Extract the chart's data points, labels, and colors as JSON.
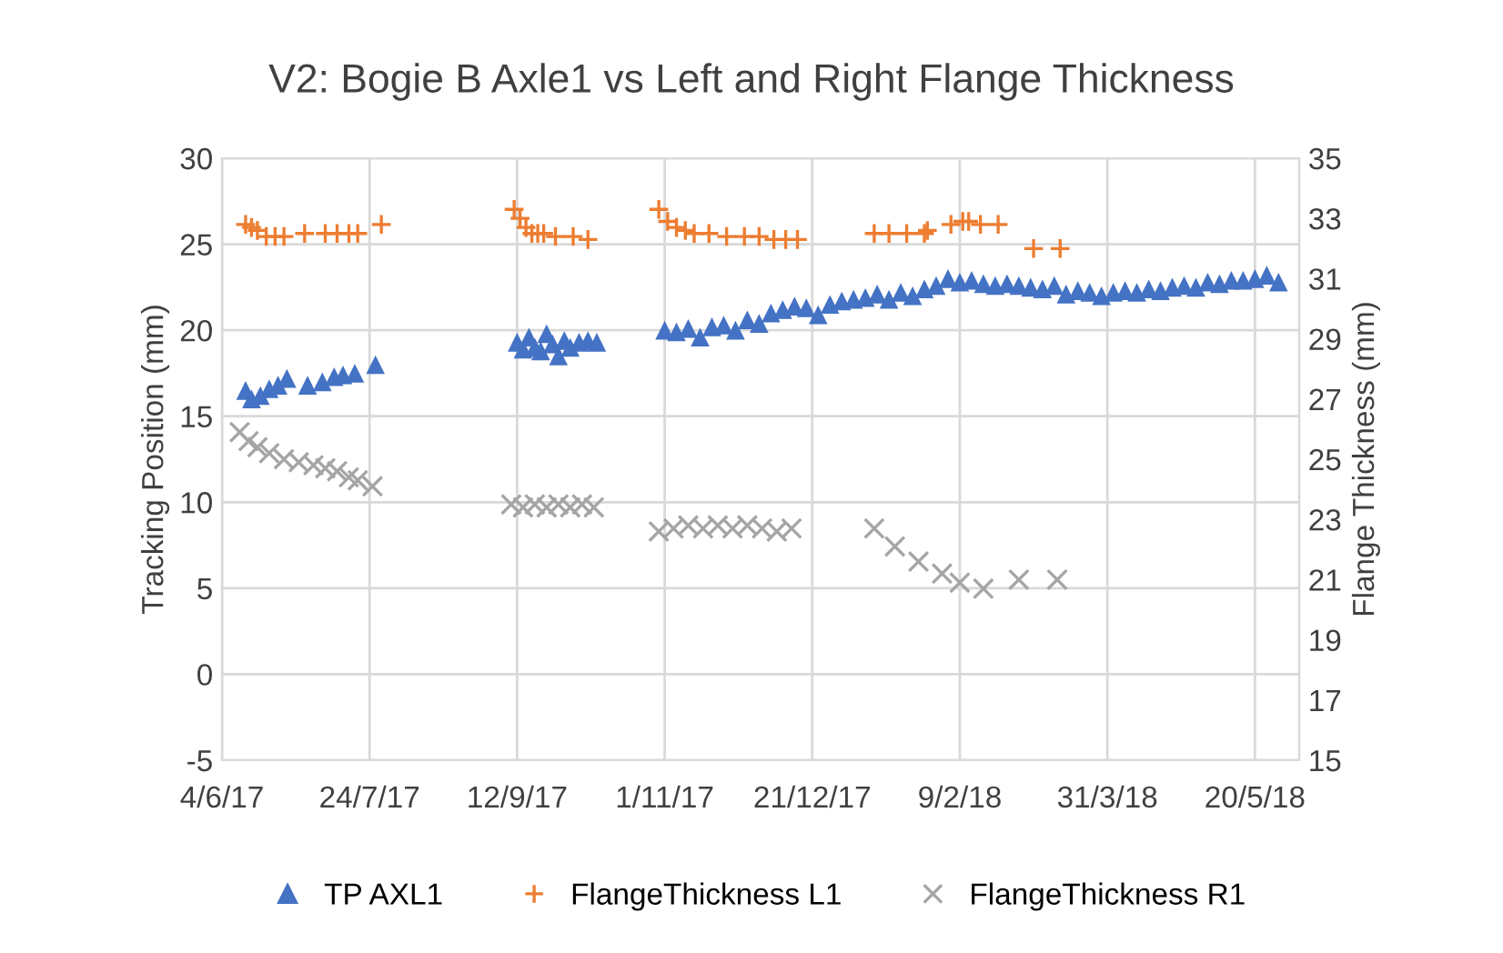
{
  "chart_data": {
    "type": "scatter",
    "title": "V2: Bogie B Axle1 vs Left and Right Flange Thickness",
    "ylabel": "Tracking Position (mm)",
    "y2label": "Flange Thickness (mm)",
    "xlim": [
      "2017-06-04",
      "2018-06-04"
    ],
    "xticks": [
      {
        "value": "2017-06-04",
        "label": "4/6/17"
      },
      {
        "value": "2017-07-24",
        "label": "24/7/17"
      },
      {
        "value": "2017-09-12",
        "label": "12/9/17"
      },
      {
        "value": "2017-11-01",
        "label": "1/11/17"
      },
      {
        "value": "2017-12-21",
        "label": "21/12/17"
      },
      {
        "value": "2018-02-09",
        "label": "9/2/18"
      },
      {
        "value": "2018-03-31",
        "label": "31/3/18"
      },
      {
        "value": "2018-05-20",
        "label": "20/5/18"
      }
    ],
    "ylim": [
      -5,
      30
    ],
    "yticks": [
      -5,
      0,
      5,
      10,
      15,
      20,
      25,
      30
    ],
    "y2lim": [
      15,
      35
    ],
    "y2ticks": [
      15,
      17,
      19,
      21,
      23,
      25,
      27,
      29,
      31,
      33,
      35
    ],
    "grid": true,
    "legend": "bottom",
    "series": [
      {
        "name": "TP AXL1",
        "color": "#4472c4",
        "marker": "triangle",
        "x": [
          "2017-06-12",
          "2017-06-14",
          "2017-06-17",
          "2017-06-20",
          "2017-06-23",
          "2017-06-26",
          "2017-07-03",
          "2017-07-08",
          "2017-07-12",
          "2017-07-15",
          "2017-07-19",
          "2017-07-26",
          "2017-09-12",
          "2017-09-14",
          "2017-09-16",
          "2017-09-18",
          "2017-09-20",
          "2017-09-22",
          "2017-09-24",
          "2017-09-26",
          "2017-09-28",
          "2017-09-30",
          "2017-10-03",
          "2017-10-06",
          "2017-10-09",
          "2017-11-01",
          "2017-11-05",
          "2017-11-09",
          "2017-11-13",
          "2017-11-17",
          "2017-11-21",
          "2017-11-25",
          "2017-11-29",
          "2017-12-03",
          "2017-12-07",
          "2017-12-11",
          "2017-12-15",
          "2017-12-19",
          "2017-12-23",
          "2017-12-27",
          "2017-12-31",
          "2018-01-04",
          "2018-01-08",
          "2018-01-12",
          "2018-01-16",
          "2018-01-20",
          "2018-01-24",
          "2018-01-28",
          "2018-02-01",
          "2018-02-05",
          "2018-02-09",
          "2018-02-13",
          "2018-02-17",
          "2018-02-21",
          "2018-02-25",
          "2018-03-01",
          "2018-03-05",
          "2018-03-09",
          "2018-03-13",
          "2018-03-17",
          "2018-03-21",
          "2018-03-25",
          "2018-03-29",
          "2018-04-02",
          "2018-04-06",
          "2018-04-10",
          "2018-04-14",
          "2018-04-18",
          "2018-04-22",
          "2018-04-26",
          "2018-04-30",
          "2018-05-04",
          "2018-05-08",
          "2018-05-12",
          "2018-05-16",
          "2018-05-20",
          "2018-05-24",
          "2018-05-28"
        ],
        "values": [
          16.5,
          16.0,
          16.2,
          16.6,
          16.8,
          17.2,
          16.8,
          17.0,
          17.3,
          17.4,
          17.5,
          18.0,
          19.3,
          18.9,
          19.6,
          19.0,
          18.8,
          19.8,
          19.2,
          18.5,
          19.4,
          19.0,
          19.3,
          19.4,
          19.3,
          20.0,
          19.9,
          20.1,
          19.6,
          20.2,
          20.3,
          20.0,
          20.6,
          20.4,
          21.0,
          21.2,
          21.4,
          21.3,
          20.9,
          21.5,
          21.7,
          21.8,
          21.9,
          22.1,
          21.8,
          22.2,
          22.0,
          22.4,
          22.6,
          23.0,
          22.8,
          22.9,
          22.7,
          22.6,
          22.7,
          22.6,
          22.5,
          22.4,
          22.6,
          22.1,
          22.3,
          22.2,
          22.0,
          22.2,
          22.3,
          22.2,
          22.4,
          22.3,
          22.5,
          22.6,
          22.5,
          22.8,
          22.7,
          22.9,
          22.9,
          23.0,
          23.2,
          22.8
        ]
      },
      {
        "name": "FlangeThickness L1",
        "color": "#ed7d31",
        "marker": "cross",
        "axis": "y2",
        "x": [
          "2017-06-12",
          "2017-06-14",
          "2017-06-16",
          "2017-06-19",
          "2017-06-22",
          "2017-06-25",
          "2017-07-02",
          "2017-07-09",
          "2017-07-13",
          "2017-07-17",
          "2017-07-20",
          "2017-07-28",
          "2017-09-11",
          "2017-09-13",
          "2017-09-15",
          "2017-09-17",
          "2017-09-19",
          "2017-09-21",
          "2017-09-25",
          "2017-10-01",
          "2017-10-06",
          "2017-10-30",
          "2017-11-02",
          "2017-11-05",
          "2017-11-08",
          "2017-11-11",
          "2017-11-16",
          "2017-11-22",
          "2017-11-28",
          "2017-12-03",
          "2017-12-08",
          "2017-12-12",
          "2017-12-16",
          "2018-01-11",
          "2018-01-16",
          "2018-01-22",
          "2018-01-28",
          "2018-01-29",
          "2018-02-06",
          "2018-02-10",
          "2018-02-12",
          "2018-02-16",
          "2018-02-22",
          "2018-03-06",
          "2018-03-15"
        ],
        "values": [
          32.8,
          32.7,
          32.6,
          32.4,
          32.4,
          32.4,
          32.5,
          32.5,
          32.5,
          32.5,
          32.5,
          32.8,
          33.3,
          33.0,
          32.7,
          32.5,
          32.5,
          32.5,
          32.4,
          32.4,
          32.3,
          33.3,
          32.9,
          32.7,
          32.6,
          32.5,
          32.5,
          32.4,
          32.4,
          32.4,
          32.3,
          32.3,
          32.3,
          32.5,
          32.5,
          32.5,
          32.5,
          32.6,
          32.8,
          32.9,
          32.9,
          32.8,
          32.8,
          32.0,
          32.0
        ]
      },
      {
        "name": "FlangeThickness R1",
        "color": "#a5a5a5",
        "marker": "x",
        "axis": "y2",
        "x": [
          "2017-06-10",
          "2017-06-13",
          "2017-06-16",
          "2017-06-20",
          "2017-06-25",
          "2017-06-30",
          "2017-07-05",
          "2017-07-09",
          "2017-07-13",
          "2017-07-17",
          "2017-07-20",
          "2017-07-25",
          "2017-09-10",
          "2017-09-14",
          "2017-09-18",
          "2017-09-22",
          "2017-09-26",
          "2017-09-30",
          "2017-10-04",
          "2017-10-08",
          "2017-10-30",
          "2017-11-04",
          "2017-11-09",
          "2017-11-14",
          "2017-11-19",
          "2017-11-24",
          "2017-11-29",
          "2017-12-04",
          "2017-12-09",
          "2017-12-14",
          "2018-01-11",
          "2018-01-18",
          "2018-01-26",
          "2018-02-03",
          "2018-02-09",
          "2018-02-17",
          "2018-03-01",
          "2018-03-14"
        ],
        "values": [
          25.9,
          25.6,
          25.4,
          25.2,
          25.0,
          24.9,
          24.8,
          24.7,
          24.6,
          24.4,
          24.3,
          24.1,
          23.5,
          23.4,
          23.5,
          23.4,
          23.5,
          23.4,
          23.5,
          23.4,
          22.6,
          22.7,
          22.8,
          22.7,
          22.8,
          22.7,
          22.8,
          22.7,
          22.6,
          22.7,
          22.7,
          22.1,
          21.6,
          21.2,
          20.9,
          20.7,
          21.0,
          21.0
        ]
      }
    ]
  }
}
